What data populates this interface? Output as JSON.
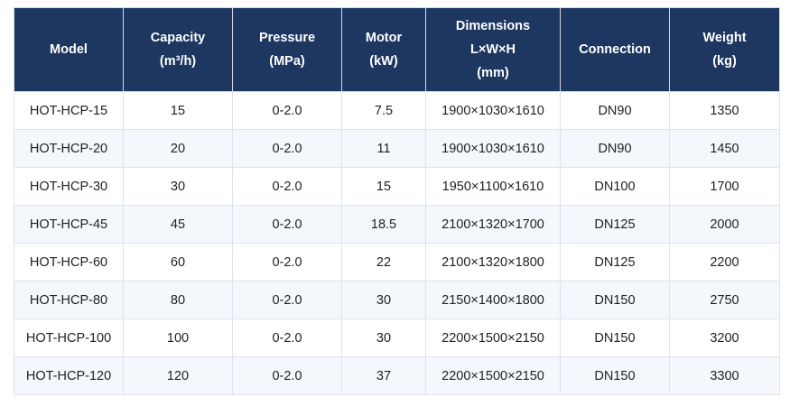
{
  "table": {
    "headers": [
      {
        "lines": [
          "Model"
        ]
      },
      {
        "lines": [
          "Capacity",
          "(m³/h)"
        ]
      },
      {
        "lines": [
          "Pressure",
          "(MPa)"
        ]
      },
      {
        "lines": [
          "Motor",
          "(kW)"
        ]
      },
      {
        "lines": [
          "Dimensions",
          "L×W×H",
          "(mm)"
        ]
      },
      {
        "lines": [
          "Connection"
        ]
      },
      {
        "lines": [
          "Weight",
          "(kg)"
        ]
      }
    ],
    "rows": [
      [
        "HOT-HCP-15",
        "15",
        "0-2.0",
        "7.5",
        "1900×1030×1610",
        "DN90",
        "1350"
      ],
      [
        "HOT-HCP-20",
        "20",
        "0-2.0",
        "11",
        "1900×1030×1610",
        "DN90",
        "1450"
      ],
      [
        "HOT-HCP-30",
        "30",
        "0-2.0",
        "15",
        "1950×1100×1610",
        "DN100",
        "1700"
      ],
      [
        "HOT-HCP-45",
        "45",
        "0-2.0",
        "18.5",
        "2100×1320×1700",
        "DN125",
        "2000"
      ],
      [
        "HOT-HCP-60",
        "60",
        "0-2.0",
        "22",
        "2100×1320×1800",
        "DN125",
        "2200"
      ],
      [
        "HOT-HCP-80",
        "80",
        "0-2.0",
        "30",
        "2150×1400×1800",
        "DN150",
        "2750"
      ],
      [
        "HOT-HCP-100",
        "100",
        "0-2.0",
        "30",
        "2200×1500×2150",
        "DN150",
        "3200"
      ],
      [
        "HOT-HCP-120",
        "120",
        "0-2.0",
        "37",
        "2200×1500×2150",
        "DN150",
        "3300"
      ]
    ]
  },
  "colors": {
    "header_bg": "#1d3761",
    "header_text": "#ffffff",
    "row_alt_bg": "#f4f7fb",
    "border": "#dde3ea"
  }
}
